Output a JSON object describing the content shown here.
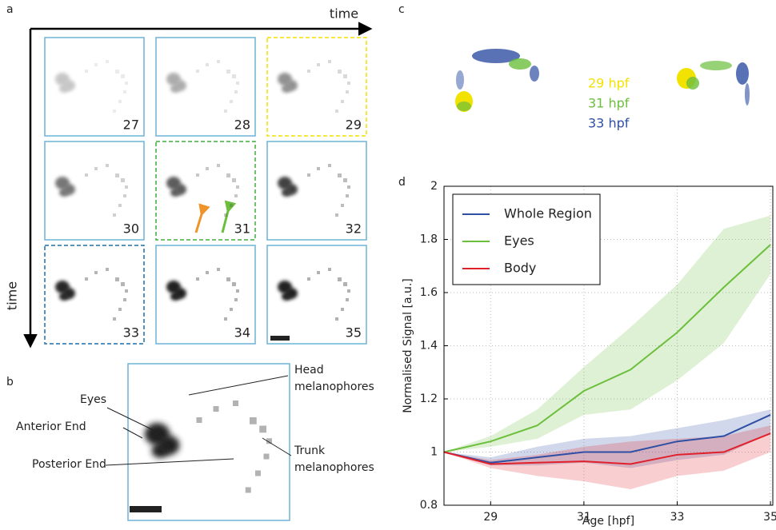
{
  "panel_labels": [
    "a",
    "b",
    "c",
    "d"
  ],
  "panel_a": {
    "x_label": "time",
    "y_label": "time",
    "frames": [
      27,
      28,
      29,
      30,
      31,
      32,
      33,
      34,
      35
    ]
  },
  "panel_b": {
    "eyes": "Eyes",
    "anterior": "Anterior End",
    "posterior": "Posterior End",
    "head": [
      "Head",
      "melanophores"
    ],
    "trunk": [
      "Trunk",
      "melanophores"
    ]
  },
  "panel_c": {
    "legend": [
      {
        "label": "29 hpf",
        "color": "#f2e200"
      },
      {
        "label": "31 hpf",
        "color": "#6cbf3c"
      },
      {
        "label": "33 hpf",
        "color": "#2e4fa3"
      }
    ]
  },
  "chart_data": {
    "type": "line",
    "x_label": "Age [hpf]",
    "y_label": "Normalised Signal [a.u.]",
    "x": [
      28,
      29,
      30,
      31,
      32,
      33,
      34,
      35
    ],
    "xlim": [
      28,
      35.05
    ],
    "ylim": [
      0.8,
      2
    ],
    "xticks": [
      29,
      31,
      33,
      35
    ],
    "yticks": [
      0.8,
      1,
      1.2,
      1.4,
      1.6,
      1.8,
      2
    ],
    "grid": true,
    "legend": "upper left",
    "series": [
      {
        "name": "Whole Region",
        "color": "#2e4fa3",
        "values": [
          1,
          0.96,
          0.98,
          1.0,
          1.0,
          1.04,
          1.06,
          1.14
        ],
        "lower": [
          1,
          0.95,
          0.95,
          0.96,
          0.94,
          0.97,
          0.99,
          1.07
        ],
        "upper": [
          1,
          0.98,
          1.02,
          1.05,
          1.06,
          1.09,
          1.12,
          1.16
        ]
      },
      {
        "name": "Eyes",
        "color": "#6cbf3c",
        "values": [
          1,
          1.04,
          1.1,
          1.23,
          1.31,
          1.45,
          1.62,
          1.78
        ],
        "lower": [
          1,
          1.02,
          1.05,
          1.14,
          1.16,
          1.27,
          1.41,
          1.67
        ],
        "upper": [
          1,
          1.06,
          1.16,
          1.32,
          1.47,
          1.63,
          1.84,
          1.89
        ]
      },
      {
        "name": "Body",
        "color": "#e0202a",
        "values": [
          1,
          0.955,
          0.96,
          0.965,
          0.955,
          0.99,
          1.0,
          1.07
        ],
        "lower": [
          1,
          0.94,
          0.91,
          0.89,
          0.86,
          0.91,
          0.93,
          1.0
        ],
        "upper": [
          1,
          0.97,
          0.99,
          1.02,
          1.04,
          1.05,
          1.06,
          1.1
        ]
      }
    ]
  }
}
